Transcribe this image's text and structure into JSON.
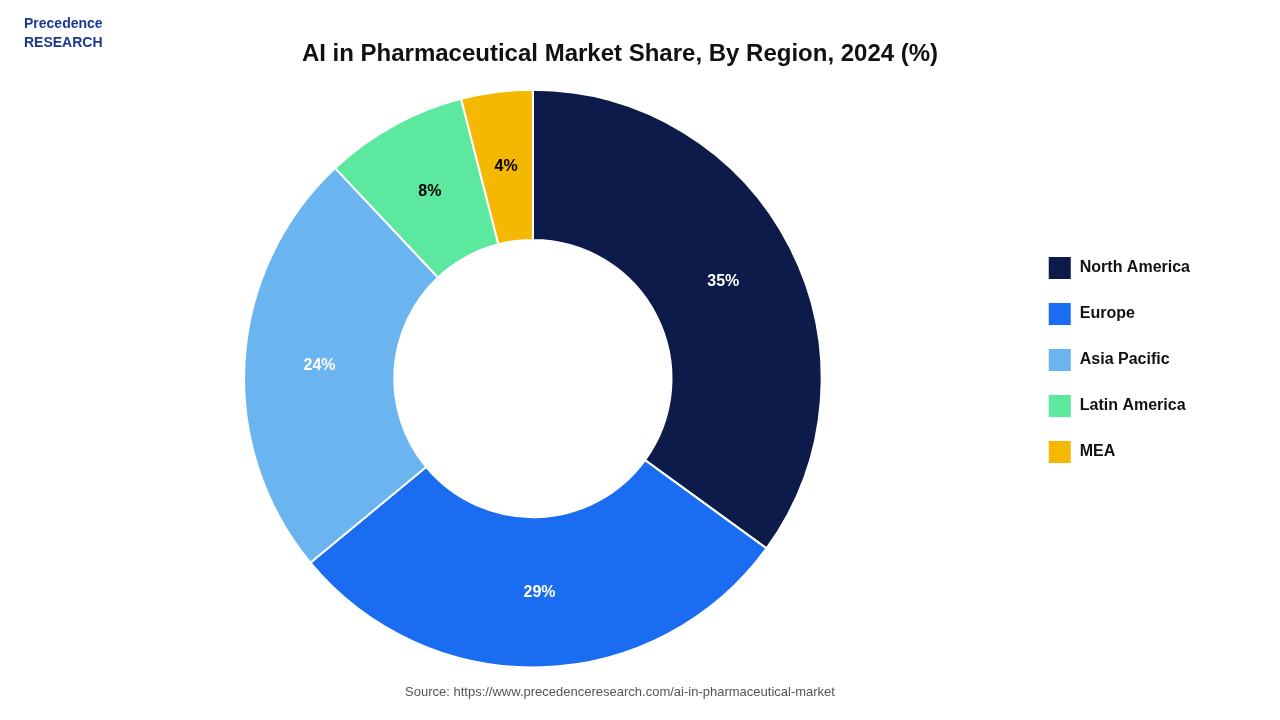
{
  "chart_data": {
    "type": "donut",
    "title": "AI in Pharmaceutical Market Share, By Region, 2024 (%)",
    "categories": [
      "North America",
      "Europe",
      "Asia Pacific",
      "Latin America",
      "MEA"
    ],
    "values": [
      35,
      29,
      24,
      8,
      4
    ],
    "colors": [
      "#0d1b4b",
      "#1a6df0",
      "#6ab4f0",
      "#5de8a0",
      "#f5b800"
    ],
    "data_labels": true,
    "value_labels": [
      "35%",
      "29%",
      "24%",
      "8%",
      "4%"
    ],
    "legend": "right",
    "annotations": [
      "Source: https://www.precedenceresearch.com/ai-in-pharmaceutical-market",
      "Precedence\nRESEARCH"
    ]
  }
}
